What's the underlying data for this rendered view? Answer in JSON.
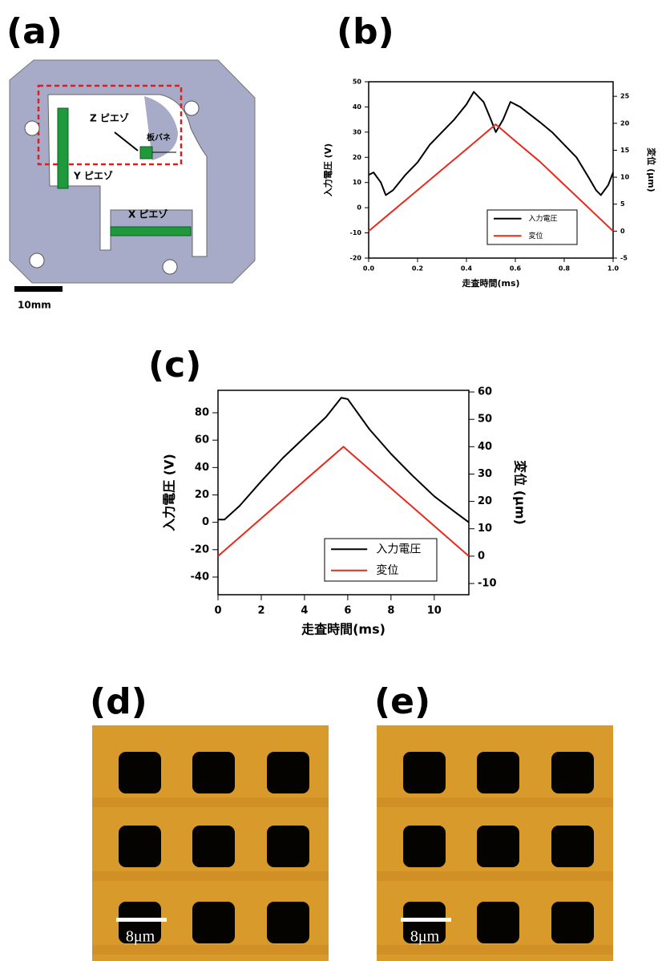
{
  "diagram": {
    "panel_label": "(a)",
    "z_piezo": "Z ピエゾ",
    "spring": "板バネ",
    "y_piezo": "Y ピエゾ",
    "x_piezo": "X ピエゾ",
    "scale_label": "10mm"
  },
  "chart_data": [
    {
      "type": "line",
      "panel_label": "(b)",
      "x_label": "走査時間(ms)",
      "y_label": "入力電圧 (V)",
      "y2_label": "変位 (μm)",
      "xlim": [
        0,
        1.0
      ],
      "xticks": [
        {
          "value": 0,
          "label": "0.0"
        },
        {
          "value": 0.2,
          "label": "0.2"
        },
        {
          "value": 0.4,
          "label": "0.4"
        },
        {
          "value": 0.6,
          "label": "0.6"
        },
        {
          "value": 0.8,
          "label": "0.8"
        },
        {
          "value": 1.0,
          "label": "1.0"
        }
      ],
      "ylim": [
        -20,
        50
      ],
      "yticks": [
        -20,
        -10,
        0,
        10,
        20,
        30,
        40,
        50
      ],
      "y2lim": [
        -5,
        27.7
      ],
      "y2ticks": [
        -5,
        0,
        5,
        10,
        15,
        20,
        25
      ],
      "legend": "lower-right",
      "series": [
        {
          "name": "入力電圧",
          "color": "#000000",
          "axis": "y",
          "x": [
            0,
            0.02,
            0.05,
            0.07,
            0.1,
            0.15,
            0.2,
            0.25,
            0.3,
            0.35,
            0.4,
            0.43,
            0.47,
            0.5,
            0.52,
            0.55,
            0.58,
            0.62,
            0.7,
            0.75,
            0.8,
            0.85,
            0.9,
            0.93,
            0.95,
            0.98,
            1.0
          ],
          "values": [
            13,
            14,
            10,
            5,
            7,
            13,
            18,
            25,
            30,
            35,
            41,
            46,
            42,
            35,
            30,
            35,
            42,
            40,
            34,
            30,
            25,
            20,
            12,
            7,
            5,
            9,
            14
          ]
        },
        {
          "name": "変位",
          "color": "#e8291c",
          "axis": "y2",
          "x": [
            0,
            0.1,
            0.2,
            0.3,
            0.4,
            0.52,
            0.6,
            0.7,
            0.8,
            0.9,
            1.0
          ],
          "values": [
            0,
            3.8,
            7.6,
            11.4,
            15.2,
            19.8,
            16.7,
            12.9,
            8.6,
            4.3,
            0
          ]
        }
      ]
    },
    {
      "type": "line",
      "panel_label": "(c)",
      "x_label": "走査時間(ms)",
      "y_label": "入力電圧 (V)",
      "y2_label": "変位 (μm)",
      "xlim": [
        0,
        11.6
      ],
      "xticks": [
        0,
        2,
        4,
        6,
        8,
        10
      ],
      "ylim": [
        -52.9,
        96.4
      ],
      "yticks": [
        -40,
        -20,
        0,
        20,
        40,
        60,
        80
      ],
      "y2lim": [
        -14.1,
        60.6
      ],
      "y2ticks": [
        -10,
        0,
        10,
        20,
        30,
        40,
        50,
        60
      ],
      "legend": "lower-right",
      "series": [
        {
          "name": "入力電圧",
          "color": "#000000",
          "axis": "y",
          "x": [
            0,
            0.3,
            1,
            2,
            3,
            4,
            5,
            5.7,
            6,
            7,
            8,
            9,
            10,
            11,
            11.6
          ],
          "values": [
            2,
            2,
            12,
            30,
            47,
            62,
            77,
            91,
            90,
            68,
            50,
            34,
            19,
            7,
            0
          ]
        },
        {
          "name": "変位",
          "color": "#e8291c",
          "axis": "y2",
          "x": [
            0,
            2.9,
            5.8,
            8.7,
            11.6
          ],
          "values": [
            0,
            20,
            40,
            20,
            0
          ]
        }
      ]
    }
  ],
  "images": [
    {
      "panel_label": "(d)",
      "scale_label": "8μm"
    },
    {
      "panel_label": "(e)",
      "scale_label": "8μm"
    }
  ]
}
